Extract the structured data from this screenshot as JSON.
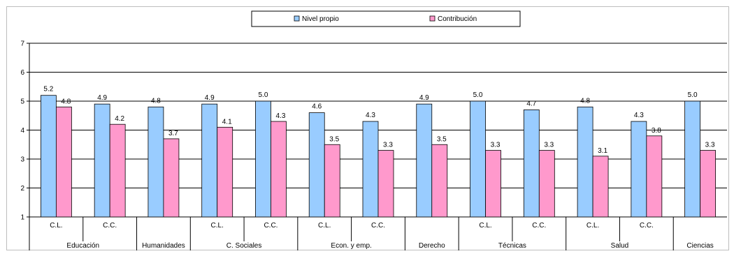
{
  "chart_data": {
    "type": "bar",
    "title": "",
    "xlabel": "",
    "ylabel": "",
    "ylim": [
      1,
      7
    ],
    "yticks": [
      "1",
      "2",
      "3",
      "4",
      "5",
      "6",
      "7"
    ],
    "grid": true,
    "legend_position": "top",
    "groups": [
      {
        "label": "Educación",
        "subcategories": [
          "C.L.",
          "C.C."
        ]
      },
      {
        "label": "Humanidades",
        "subcategories": [
          ""
        ]
      },
      {
        "label": "C. Sociales",
        "subcategories": [
          "C.L.",
          "C.C."
        ]
      },
      {
        "label": "Econ. y emp.",
        "subcategories": [
          "C.L.",
          "C.C."
        ]
      },
      {
        "label": "Derecho",
        "subcategories": [
          ""
        ]
      },
      {
        "label": "Técnicas",
        "subcategories": [
          "C.L.",
          "C.C."
        ]
      },
      {
        "label": "Salud",
        "subcategories": [
          "C.L.",
          "C.C."
        ]
      },
      {
        "label": "Ciencias",
        "subcategories": [
          ""
        ]
      }
    ],
    "series": [
      {
        "name": "Nivel propio",
        "color": "#99ccff",
        "values": [
          5.2,
          4.9,
          4.8,
          4.9,
          5.0,
          4.6,
          4.3,
          4.9,
          5.0,
          4.7,
          4.8,
          4.3,
          5.0
        ],
        "labels": [
          "5.2",
          "4.9",
          "4.8",
          "4.9",
          "5.0",
          "4.6",
          "4.3",
          "4.9",
          "5.0",
          "4.7",
          "4.8",
          "4.3",
          "5.0"
        ]
      },
      {
        "name": "Contribución",
        "color": "#ff99cc",
        "values": [
          4.8,
          4.2,
          3.7,
          4.1,
          4.3,
          3.5,
          3.3,
          3.5,
          3.3,
          3.3,
          3.1,
          3.8,
          3.3
        ],
        "labels": [
          "4.8",
          "4.2",
          "3.7",
          "4.1",
          "4.3",
          "3.5",
          "3.3",
          "3.5",
          "3.3",
          "3.3",
          "3.1",
          "3.8",
          "3.3"
        ]
      }
    ]
  }
}
